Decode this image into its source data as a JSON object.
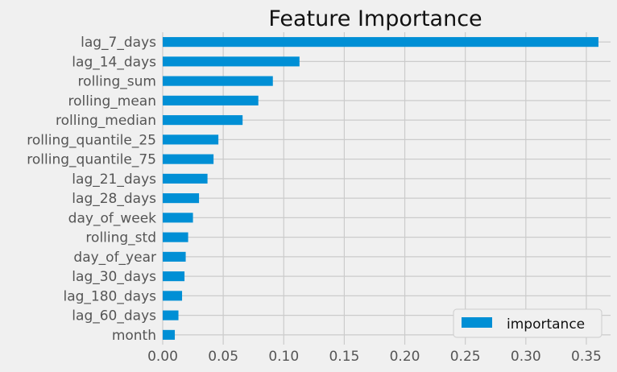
{
  "chart_data": {
    "type": "bar",
    "orientation": "horizontal",
    "title": "Feature Importance",
    "xlabel": "",
    "ylabel": "",
    "xlim": [
      0,
      0.37
    ],
    "xticks": [
      "0.00",
      "0.05",
      "0.10",
      "0.15",
      "0.20",
      "0.25",
      "0.30",
      "0.35"
    ],
    "grid": true,
    "legend_position": "lower-right",
    "bar_color": "#008fd5",
    "background": "#f0f0f0",
    "categories": [
      "lag_7_days",
      "lag_14_days",
      "rolling_sum",
      "rolling_mean",
      "rolling_median",
      "rolling_quantile_25",
      "rolling_quantile_75",
      "lag_21_days",
      "lag_28_days",
      "day_of_week",
      "rolling_std",
      "day_of_year",
      "lag_30_days",
      "lag_180_days",
      "lag_60_days",
      "month"
    ],
    "series": [
      {
        "name": "importance",
        "values": [
          0.36,
          0.113,
          0.091,
          0.079,
          0.066,
          0.046,
          0.042,
          0.037,
          0.03,
          0.025,
          0.021,
          0.019,
          0.018,
          0.016,
          0.013,
          0.01
        ]
      }
    ]
  }
}
